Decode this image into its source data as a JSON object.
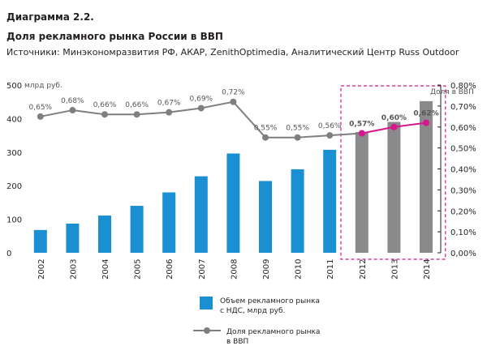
{
  "header": {
    "diagram_number": "Диаграмма 2.2.",
    "title": "Доля рекламного рынка России в ВВП",
    "sources": "Источники: Минэкономразвития РФ, АКАР, ZenithOptimedia, Аналитический Центр Russ Outdoor"
  },
  "chart_data": {
    "type": "bar+line",
    "title": "Доля рекламного рынка России в ВВП",
    "categories": [
      "2002",
      "2003",
      "2004",
      "2005",
      "2006",
      "2007",
      "2008",
      "2009",
      "2010",
      "2011",
      "2012",
      "2013",
      "2014"
    ],
    "forecast_categories": [
      "2012",
      "2013",
      "2014"
    ],
    "y_left": {
      "label": "млрд руб.",
      "ticks": [
        0,
        100,
        200,
        300,
        400,
        500
      ],
      "ylim": [
        0,
        500
      ]
    },
    "y_right": {
      "label": "Доля в ВВП",
      "ticks": [
        "0,00%",
        "0,10%",
        "0,20%",
        "0,30%",
        "0,40%",
        "0,50%",
        "0,60%",
        "0,70%",
        "0,80%"
      ],
      "ylim": [
        0,
        0.8
      ]
    },
    "series": [
      {
        "name": "Объем рекламного рынка с НДС, млрд руб.",
        "type": "bar",
        "axis": "left",
        "values": [
          68,
          87,
          111,
          140,
          180,
          228,
          296,
          214,
          249,
          307,
          360,
          390,
          452
        ]
      },
      {
        "name": "Доля рекламного рынка в ВВП",
        "type": "line",
        "axis": "right",
        "values": [
          0.65,
          0.68,
          0.66,
          0.66,
          0.67,
          0.69,
          0.72,
          0.55,
          0.55,
          0.56,
          0.57,
          0.6,
          0.62
        ],
        "labels": [
          "0,65%",
          "0,68%",
          "0,66%",
          "0,66%",
          "0,67%",
          "0,69%",
          "0,72%",
          "0,55%",
          "0,55%",
          "0,56%",
          "0,57%",
          "0,60%",
          "0,62%"
        ]
      }
    ],
    "legend": [
      {
        "label_line1": "Объем рекламного рынка",
        "label_line2": "с НДС, млрд руб."
      },
      {
        "label_line1": "Доля рекламного рынка",
        "label_line2": "в ВВП"
      }
    ],
    "colors": {
      "bar": "#1a8fd1",
      "bar_forecast": "#8a8a8d",
      "line": "#7f7f82",
      "line_forecast": "#d6168c",
      "forecast_box": "#d6168c",
      "label_forecast": "#d6168c"
    }
  }
}
